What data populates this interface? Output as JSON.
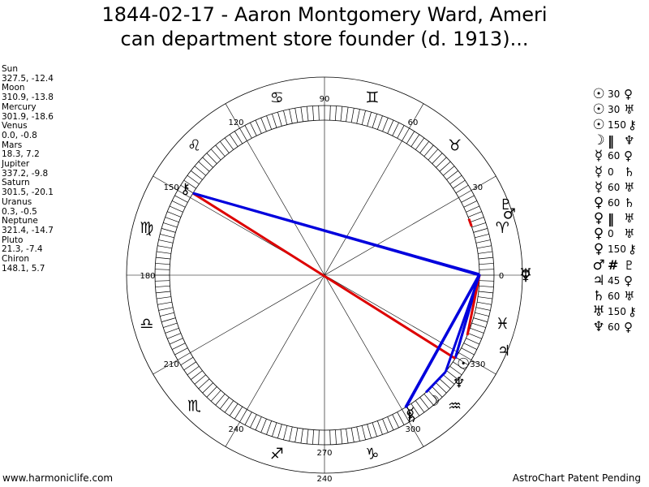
{
  "title_line1": "1844-02-17 - Aaron Montgomery Ward, Ameri",
  "title_line2": "can department store founder (d. 1913)...",
  "planets": [
    {
      "name": "Sun",
      "coords": "327.5, -12.4",
      "lon": 327.5,
      "glyph": "☉",
      "color": "#000000"
    },
    {
      "name": "Moon",
      "coords": "310.9, -13.8",
      "lon": 310.9,
      "glyph": "☽",
      "color": "#000000"
    },
    {
      "name": "Mercury",
      "coords": "301.9, -18.6",
      "lon": 301.9,
      "glyph": "☿",
      "color": "#000000"
    },
    {
      "name": "Venus",
      "coords": "0.0, -0.8",
      "lon": 0.0,
      "glyph": "♀",
      "color": "#000000"
    },
    {
      "name": "Mars",
      "coords": "18.3, 7.2",
      "lon": 18.3,
      "glyph": "♂",
      "color": "#000000"
    },
    {
      "name": "Jupiter",
      "coords": "337.2, -9.8",
      "lon": 337.2,
      "glyph": "♃",
      "color": "#000000"
    },
    {
      "name": "Saturn",
      "coords": "301.5, -20.1",
      "lon": 301.5,
      "glyph": "♄",
      "color": "#000000"
    },
    {
      "name": "Uranus",
      "coords": "0.3, -0.5",
      "lon": 0.3,
      "glyph": "♅",
      "color": "#000000"
    },
    {
      "name": "Neptune",
      "coords": "321.4, -14.7",
      "lon": 321.4,
      "glyph": "♆",
      "color": "#000000"
    },
    {
      "name": "Pluto",
      "coords": "21.3, -7.4",
      "lon": 21.3,
      "glyph": "♇",
      "color": "#000000"
    },
    {
      "name": "Chiron",
      "coords": "148.1, 5.7",
      "lon": 148.1,
      "glyph": "⚷",
      "color": "#000000"
    }
  ],
  "aspects": [
    {
      "p1": "☉",
      "value": "30",
      "p2": "♀",
      "from": 0,
      "to": 3,
      "color": "#0000dd"
    },
    {
      "p1": "☉",
      "value": "30",
      "p2": "♅",
      "from": 0,
      "to": 7,
      "color": "#0000dd"
    },
    {
      "p1": "☉",
      "value": "150",
      "p2": "⚷",
      "from": 0,
      "to": 10,
      "color": "#dd0000"
    },
    {
      "p1": "☽",
      "value": "‖",
      "p2": "♆",
      "from": 1,
      "to": 8,
      "color": "#0000dd"
    },
    {
      "p1": "☿",
      "value": "60",
      "p2": "♀",
      "from": 2,
      "to": 3,
      "color": "#0000dd"
    },
    {
      "p1": "☿",
      "value": "0",
      "p2": "♄",
      "from": 2,
      "to": 6,
      "color": "#0000dd"
    },
    {
      "p1": "☿",
      "value": "60",
      "p2": "♅",
      "from": 2,
      "to": 7,
      "color": "#0000dd"
    },
    {
      "p1": "♀",
      "value": "60",
      "p2": "♄",
      "from": 3,
      "to": 6,
      "color": "#0000dd"
    },
    {
      "p1": "♀",
      "value": "‖",
      "p2": "♅",
      "from": 3,
      "to": 7,
      "color": "#0000dd"
    },
    {
      "p1": "♀",
      "value": "0",
      "p2": "♅",
      "from": 3,
      "to": 7,
      "color": "#0000dd"
    },
    {
      "p1": "♀",
      "value": "150",
      "p2": "⚷",
      "from": 3,
      "to": 10,
      "color": "#0000dd"
    },
    {
      "p1": "♂",
      "value": "#",
      "p2": "♇",
      "from": 4,
      "to": 9,
      "color": "#dd0000"
    },
    {
      "p1": "♃",
      "value": "45",
      "p2": "♀",
      "from": 5,
      "to": 3,
      "color": "#dd0000"
    },
    {
      "p1": "♄",
      "value": "60",
      "p2": "♅",
      "from": 6,
      "to": 7,
      "color": "#0000dd"
    },
    {
      "p1": "♅",
      "value": "150",
      "p2": "⚷",
      "from": 7,
      "to": 10,
      "color": "#0000dd"
    },
    {
      "p1": "♆",
      "value": "60",
      "p2": "♀",
      "from": 8,
      "to": 3,
      "color": "#0000dd"
    }
  ],
  "degree_labels": [
    "90",
    "120",
    "60",
    "150",
    "30",
    "180",
    "0",
    "210",
    "330",
    "240",
    "300",
    "270"
  ],
  "bottom_label": "240",
  "zodiac_signs": [
    "♈",
    "♉",
    "♊",
    "♋",
    "♌",
    "♍",
    "♎",
    "♏",
    "♐",
    "♑",
    "♒",
    "♓"
  ],
  "footer_left": "www.harmoniclife.com",
  "footer_right": "AstroChart Patent Pending"
}
